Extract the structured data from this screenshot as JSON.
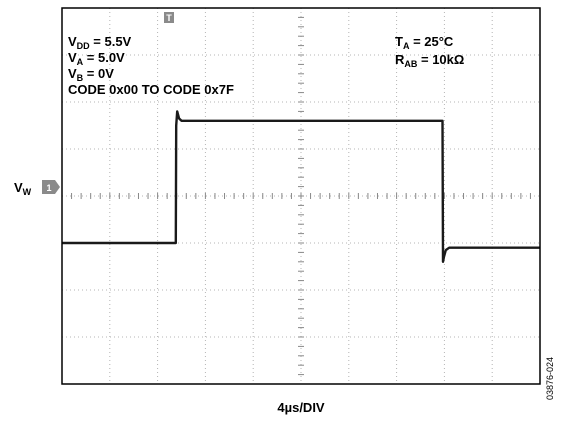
{
  "chart_data": {
    "type": "line",
    "conditions_left": [
      {
        "base": "V",
        "sub": "DD",
        "rest": " = 5.5V"
      },
      {
        "base": "V",
        "sub": "A",
        "rest": " = 5.0V"
      },
      {
        "base": "V",
        "sub": "B",
        "rest": " = 0V"
      },
      {
        "base": "CODE 0x00 TO CODE 0x7F",
        "sub": "",
        "rest": ""
      }
    ],
    "conditions_right": [
      {
        "base": "T",
        "sub": "A",
        "rest": " = 25°C"
      },
      {
        "base": "R",
        "sub": "AB",
        "rest": " = 10kΩ"
      }
    ],
    "channel_label": {
      "base": "V",
      "sub": "W",
      "marker": "1"
    },
    "trigger_marker": "T",
    "xlabel": "4µs/DIV",
    "figure_id": "03876-024",
    "grid": {
      "x_divisions": 10,
      "y_divisions": 8,
      "minor_per_division": 5
    },
    "x_range_div": [
      0,
      10
    ],
    "y_range_div": [
      -4,
      4
    ],
    "series": [
      {
        "x_div": [
          0,
          2.38,
          2.39,
          2.41,
          2.45,
          2.5,
          7.96,
          7.97,
          7.99,
          8.03,
          8.1,
          10
        ],
        "y_div": [
          -1.0,
          -1.0,
          1.5,
          1.8,
          1.65,
          1.6,
          1.6,
          -1.4,
          -1.3,
          -1.15,
          -1.1,
          -1.1
        ]
      }
    ],
    "colors": {
      "trace": "#1a1a1a",
      "grid": "#b4b4b4",
      "frame": "#000000",
      "marker_fill": "#8a8a8a"
    }
  }
}
